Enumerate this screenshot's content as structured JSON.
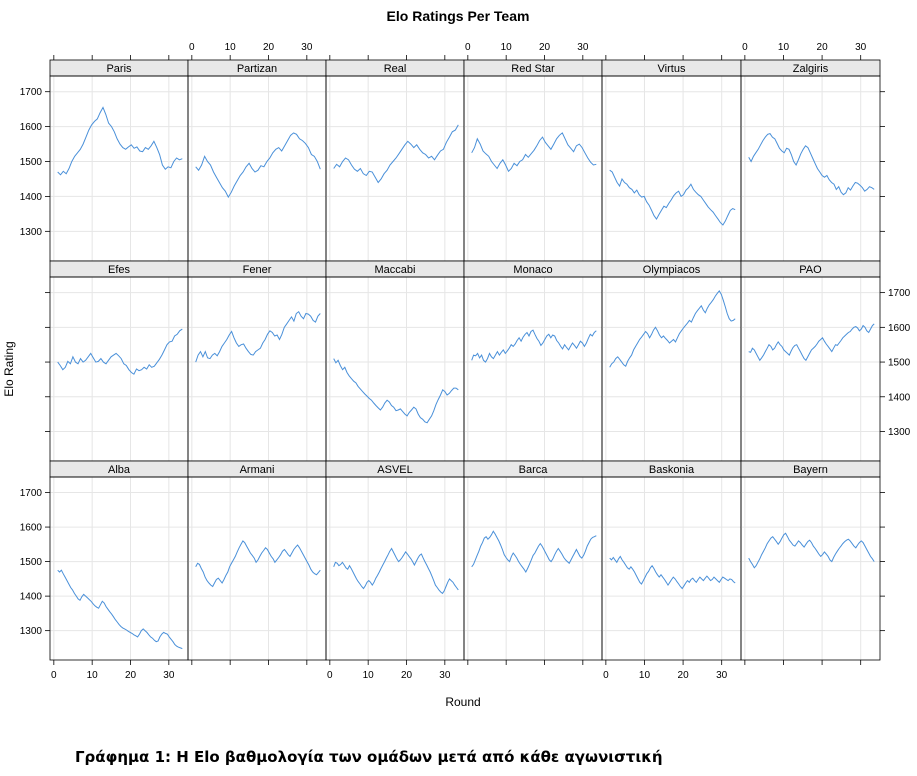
{
  "caption": "Γράφημα 1: Η Elo βαθμολογία των ομάδων μετά από κάθε αγωνιστική",
  "chart_data": {
    "type": "line",
    "title": "Elo Ratings Per Team",
    "xlabel": "Round",
    "ylabel": "Elo Rating",
    "xlim": [
      -1,
      35
    ],
    "ylim": [
      1215,
      1745
    ],
    "x_ticks": [
      0,
      10,
      20,
      30
    ],
    "y_ticks": [
      1300,
      1400,
      1500,
      1600,
      1700
    ],
    "line_color": "#4a90d9",
    "strip_color": "#e8e8e8",
    "grid": true,
    "layout": {
      "columns": 6,
      "rows": 3
    },
    "panels": [
      {
        "name": "Paris",
        "x_start": 1,
        "values": [
          1470,
          1462,
          1472,
          1465,
          1480,
          1500,
          1515,
          1525,
          1535,
          1550,
          1570,
          1590,
          1605,
          1615,
          1622,
          1640,
          1655,
          1635,
          1610,
          1600,
          1585,
          1565,
          1550,
          1540,
          1535,
          1542,
          1548,
          1538,
          1542,
          1530,
          1528,
          1540,
          1535,
          1545,
          1558,
          1540,
          1520,
          1490,
          1478,
          1485,
          1482,
          1500,
          1510,
          1505,
          1508
        ]
      },
      {
        "name": "Partizan",
        "x_start": 1,
        "values": [
          1485,
          1475,
          1490,
          1515,
          1500,
          1490,
          1470,
          1455,
          1440,
          1425,
          1415,
          1398,
          1412,
          1430,
          1445,
          1460,
          1470,
          1485,
          1495,
          1480,
          1470,
          1475,
          1488,
          1485,
          1500,
          1510,
          1525,
          1535,
          1540,
          1530,
          1545,
          1560,
          1575,
          1582,
          1578,
          1565,
          1560,
          1552,
          1540,
          1520,
          1515,
          1500,
          1478
        ]
      },
      {
        "name": "Real",
        "x_start": 1,
        "values": [
          1480,
          1492,
          1485,
          1500,
          1510,
          1505,
          1490,
          1478,
          1472,
          1480,
          1465,
          1460,
          1472,
          1470,
          1455,
          1440,
          1450,
          1465,
          1475,
          1490,
          1500,
          1510,
          1522,
          1535,
          1548,
          1558,
          1550,
          1540,
          1548,
          1535,
          1525,
          1520,
          1510,
          1515,
          1505,
          1518,
          1530,
          1535,
          1555,
          1570,
          1585,
          1590,
          1605
        ]
      },
      {
        "name": "Red Star",
        "x_start": 1,
        "values": [
          1525,
          1540,
          1565,
          1550,
          1530,
          1522,
          1515,
          1500,
          1490,
          1480,
          1495,
          1505,
          1490,
          1472,
          1480,
          1495,
          1488,
          1500,
          1505,
          1520,
          1512,
          1522,
          1532,
          1545,
          1560,
          1570,
          1555,
          1545,
          1535,
          1550,
          1565,
          1575,
          1582,
          1565,
          1548,
          1538,
          1528,
          1545,
          1550,
          1540,
          1525,
          1510,
          1498,
          1490,
          1492
        ]
      },
      {
        "name": "Virtus",
        "x_start": 1,
        "values": [
          1475,
          1470,
          1455,
          1440,
          1430,
          1450,
          1440,
          1435,
          1425,
          1420,
          1410,
          1418,
          1405,
          1398,
          1400,
          1385,
          1375,
          1360,
          1345,
          1335,
          1348,
          1360,
          1372,
          1368,
          1380,
          1390,
          1402,
          1410,
          1415,
          1400,
          1405,
          1418,
          1425,
          1435,
          1420,
          1412,
          1405,
          1400,
          1390,
          1380,
          1370,
          1362,
          1355,
          1345,
          1335,
          1325,
          1318,
          1330,
          1345,
          1360,
          1365,
          1362
        ]
      },
      {
        "name": "Zalgiris",
        "x_start": 1,
        "values": [
          1512,
          1500,
          1515,
          1525,
          1535,
          1548,
          1560,
          1570,
          1578,
          1580,
          1570,
          1565,
          1552,
          1538,
          1530,
          1525,
          1538,
          1535,
          1520,
          1500,
          1490,
          1505,
          1522,
          1535,
          1545,
          1540,
          1525,
          1510,
          1495,
          1480,
          1470,
          1460,
          1455,
          1460,
          1448,
          1440,
          1435,
          1420,
          1428,
          1412,
          1405,
          1410,
          1425,
          1418,
          1430,
          1440,
          1438,
          1432,
          1425,
          1415,
          1420,
          1428,
          1425,
          1420
        ]
      },
      {
        "name": "Efes",
        "x_start": 1,
        "values": [
          1500,
          1490,
          1478,
          1485,
          1502,
          1495,
          1515,
          1500,
          1495,
          1510,
          1500,
          1505,
          1515,
          1525,
          1512,
          1500,
          1502,
          1510,
          1500,
          1495,
          1505,
          1515,
          1520,
          1525,
          1518,
          1510,
          1495,
          1490,
          1478,
          1470,
          1465,
          1480,
          1475,
          1478,
          1485,
          1480,
          1492,
          1485,
          1488,
          1498,
          1508,
          1520,
          1535,
          1550,
          1558,
          1560,
          1575,
          1580,
          1590,
          1595
        ]
      },
      {
        "name": "Fener",
        "x_start": 1,
        "values": [
          1500,
          1520,
          1530,
          1515,
          1530,
          1512,
          1510,
          1520,
          1525,
          1518,
          1530,
          1545,
          1555,
          1565,
          1578,
          1588,
          1570,
          1555,
          1545,
          1550,
          1552,
          1540,
          1530,
          1522,
          1520,
          1530,
          1535,
          1540,
          1555,
          1565,
          1580,
          1590,
          1585,
          1575,
          1578,
          1565,
          1580,
          1600,
          1610,
          1620,
          1630,
          1618,
          1640,
          1645,
          1632,
          1625,
          1640,
          1638,
          1632,
          1620,
          1615,
          1632,
          1640
        ]
      },
      {
        "name": "Maccabi",
        "x_start": 1,
        "values": [
          1510,
          1498,
          1505,
          1490,
          1478,
          1485,
          1470,
          1460,
          1452,
          1445,
          1440,
          1430,
          1422,
          1415,
          1408,
          1402,
          1395,
          1390,
          1382,
          1375,
          1368,
          1362,
          1370,
          1382,
          1390,
          1385,
          1375,
          1370,
          1360,
          1362,
          1365,
          1358,
          1350,
          1345,
          1355,
          1362,
          1370,
          1365,
          1350,
          1340,
          1335,
          1328,
          1325,
          1335,
          1345,
          1360,
          1378,
          1392,
          1405,
          1420,
          1415,
          1405,
          1410,
          1418,
          1425,
          1425,
          1420
        ]
      },
      {
        "name": "Monaco",
        "x_start": 1,
        "values": [
          1505,
          1520,
          1518,
          1525,
          1512,
          1520,
          1505,
          1500,
          1510,
          1525,
          1515,
          1510,
          1520,
          1530,
          1520,
          1528,
          1535,
          1525,
          1532,
          1540,
          1550,
          1545,
          1552,
          1562,
          1570,
          1560,
          1572,
          1580,
          1585,
          1575,
          1588,
          1592,
          1580,
          1568,
          1560,
          1548,
          1555,
          1565,
          1575,
          1580,
          1570,
          1578,
          1575,
          1562,
          1555,
          1545,
          1538,
          1550,
          1542,
          1535,
          1545,
          1555,
          1548,
          1540,
          1550,
          1560,
          1555,
          1545,
          1555,
          1568,
          1580,
          1575,
          1585,
          1590
        ]
      },
      {
        "name": "Olympiacos",
        "x_start": 1,
        "values": [
          1485,
          1495,
          1500,
          1510,
          1515,
          1508,
          1500,
          1492,
          1488,
          1502,
          1512,
          1520,
          1535,
          1545,
          1555,
          1565,
          1572,
          1580,
          1588,
          1582,
          1570,
          1580,
          1592,
          1600,
          1590,
          1578,
          1570,
          1575,
          1568,
          1562,
          1555,
          1560,
          1565,
          1558,
          1570,
          1582,
          1590,
          1598,
          1605,
          1612,
          1620,
          1615,
          1628,
          1640,
          1648,
          1655,
          1662,
          1650,
          1642,
          1655,
          1665,
          1672,
          1680,
          1690,
          1698,
          1705,
          1695,
          1678,
          1660,
          1640,
          1625,
          1618,
          1620,
          1625
        ]
      },
      {
        "name": "PAO",
        "x_start": 1,
        "values": [
          1530,
          1528,
          1540,
          1535,
          1525,
          1515,
          1505,
          1512,
          1520,
          1530,
          1540,
          1550,
          1545,
          1535,
          1540,
          1550,
          1558,
          1550,
          1545,
          1535,
          1530,
          1525,
          1520,
          1532,
          1542,
          1548,
          1550,
          1540,
          1530,
          1520,
          1510,
          1505,
          1515,
          1525,
          1535,
          1540,
          1545,
          1552,
          1560,
          1565,
          1570,
          1560,
          1552,
          1545,
          1538,
          1530,
          1540,
          1550,
          1548,
          1555,
          1562,
          1570,
          1575,
          1580,
          1585,
          1588,
          1595,
          1600,
          1602,
          1598,
          1590,
          1595,
          1605,
          1600,
          1590,
          1585,
          1595,
          1605,
          1610
        ]
      },
      {
        "name": "Alba",
        "x_start": 1,
        "values": [
          1475,
          1470,
          1475,
          1465,
          1455,
          1445,
          1435,
          1425,
          1418,
          1408,
          1400,
          1392,
          1388,
          1398,
          1405,
          1400,
          1395,
          1390,
          1385,
          1378,
          1372,
          1368,
          1365,
          1375,
          1385,
          1380,
          1370,
          1362,
          1355,
          1348,
          1340,
          1332,
          1325,
          1318,
          1312,
          1308,
          1305,
          1302,
          1298,
          1295,
          1292,
          1288,
          1285,
          1282,
          1290,
          1300,
          1305,
          1300,
          1295,
          1288,
          1282,
          1278,
          1272,
          1268,
          1270,
          1282,
          1290,
          1295,
          1292,
          1290,
          1282,
          1275,
          1268,
          1260,
          1255,
          1252,
          1250,
          1248
        ]
      },
      {
        "name": "Armani",
        "x_start": 1,
        "values": [
          1485,
          1495,
          1492,
          1480,
          1470,
          1455,
          1445,
          1438,
          1432,
          1428,
          1438,
          1448,
          1452,
          1445,
          1438,
          1448,
          1460,
          1470,
          1485,
          1495,
          1505,
          1515,
          1528,
          1540,
          1550,
          1560,
          1555,
          1545,
          1535,
          1525,
          1518,
          1510,
          1498,
          1505,
          1515,
          1525,
          1532,
          1540,
          1535,
          1525,
          1515,
          1508,
          1498,
          1505,
          1512,
          1520,
          1530,
          1535,
          1528,
          1520,
          1515,
          1525,
          1535,
          1542,
          1548,
          1540,
          1530,
          1520,
          1510,
          1500,
          1490,
          1478,
          1470,
          1465,
          1462,
          1468,
          1475
        ]
      },
      {
        "name": "ASVEL",
        "x_start": 1,
        "values": [
          1485,
          1498,
          1495,
          1488,
          1492,
          1498,
          1490,
          1482,
          1478,
          1488,
          1480,
          1470,
          1460,
          1450,
          1442,
          1435,
          1428,
          1422,
          1430,
          1440,
          1445,
          1440,
          1432,
          1440,
          1452,
          1460,
          1470,
          1480,
          1490,
          1500,
          1510,
          1520,
          1530,
          1538,
          1528,
          1518,
          1508,
          1500,
          1505,
          1512,
          1520,
          1528,
          1522,
          1515,
          1508,
          1500,
          1490,
          1500,
          1510,
          1518,
          1522,
          1510,
          1500,
          1490,
          1480,
          1470,
          1458,
          1445,
          1432,
          1425,
          1418,
          1412,
          1408,
          1415,
          1428,
          1440,
          1450,
          1445,
          1440,
          1432,
          1425,
          1418
        ]
      },
      {
        "name": "Barca",
        "x_start": 1,
        "values": [
          1485,
          1492,
          1505,
          1518,
          1530,
          1545,
          1555,
          1568,
          1572,
          1565,
          1570,
          1578,
          1588,
          1580,
          1570,
          1560,
          1548,
          1535,
          1520,
          1512,
          1505,
          1500,
          1515,
          1525,
          1518,
          1510,
          1500,
          1492,
          1485,
          1478,
          1470,
          1480,
          1492,
          1505,
          1518,
          1525,
          1535,
          1545,
          1552,
          1545,
          1535,
          1525,
          1515,
          1505,
          1500,
          1508,
          1520,
          1530,
          1538,
          1530,
          1522,
          1512,
          1505,
          1500,
          1495,
          1505,
          1515,
          1525,
          1535,
          1525,
          1515,
          1510,
          1518,
          1530,
          1545,
          1555,
          1565,
          1570,
          1572,
          1575
        ]
      },
      {
        "name": "Baskonia",
        "x_start": 1,
        "values": [
          1510,
          1505,
          1512,
          1505,
          1498,
          1508,
          1515,
          1505,
          1498,
          1490,
          1482,
          1478,
          1485,
          1478,
          1470,
          1460,
          1450,
          1440,
          1435,
          1445,
          1455,
          1465,
          1472,
          1482,
          1488,
          1480,
          1470,
          1462,
          1455,
          1462,
          1455,
          1448,
          1440,
          1432,
          1440,
          1448,
          1455,
          1450,
          1442,
          1435,
          1428,
          1422,
          1430,
          1438,
          1445,
          1440,
          1448,
          1452,
          1445,
          1440,
          1448,
          1455,
          1450,
          1445,
          1452,
          1458,
          1452,
          1445,
          1448,
          1455,
          1450,
          1445,
          1440,
          1448,
          1455,
          1452,
          1448,
          1445,
          1450,
          1448,
          1442,
          1438
        ]
      },
      {
        "name": "Bayern",
        "x_start": 1,
        "values": [
          1510,
          1500,
          1492,
          1482,
          1488,
          1498,
          1508,
          1520,
          1530,
          1540,
          1552,
          1560,
          1568,
          1572,
          1565,
          1558,
          1550,
          1558,
          1568,
          1578,
          1582,
          1572,
          1562,
          1555,
          1548,
          1545,
          1552,
          1560,
          1555,
          1548,
          1542,
          1550,
          1558,
          1562,
          1555,
          1545,
          1538,
          1530,
          1522,
          1515,
          1520,
          1528,
          1522,
          1515,
          1505,
          1500,
          1512,
          1522,
          1530,
          1538,
          1545,
          1552,
          1558,
          1562,
          1565,
          1560,
          1552,
          1545,
          1540,
          1548,
          1555,
          1560,
          1555,
          1545,
          1535,
          1525,
          1515,
          1508,
          1500
        ]
      }
    ]
  }
}
